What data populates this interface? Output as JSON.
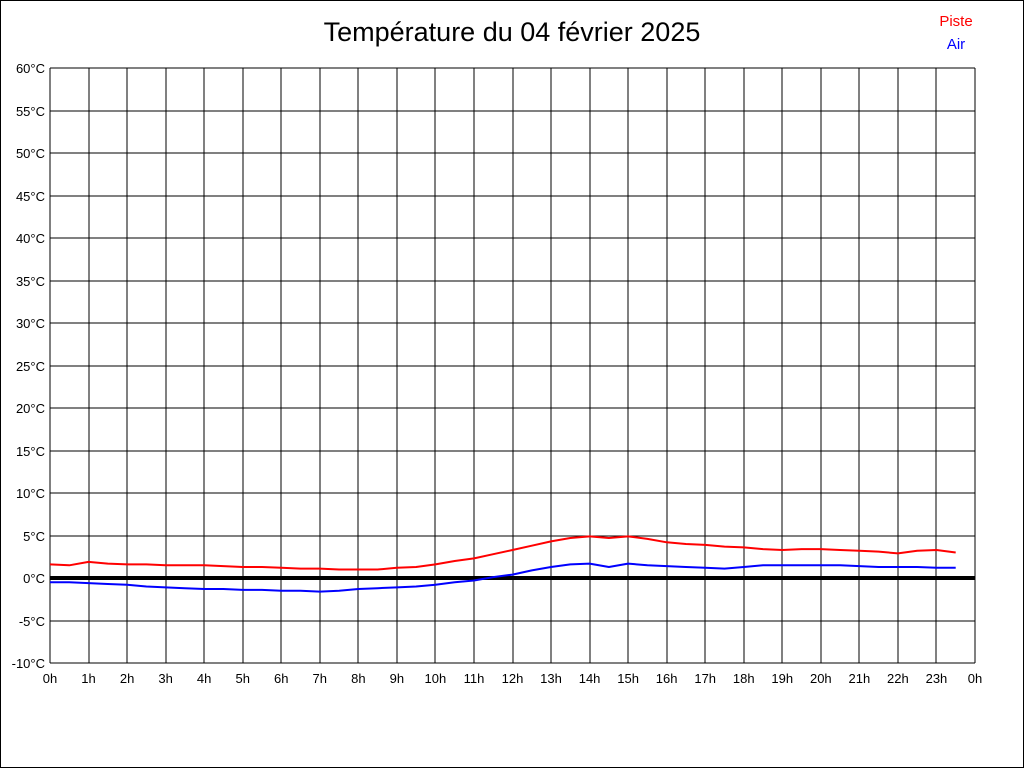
{
  "chart_data": {
    "type": "line",
    "title": "Température du 04 février 2025",
    "xlabel": "",
    "ylabel": "",
    "xlim": [
      0,
      24
    ],
    "ylim": [
      -10,
      60
    ],
    "grid": true,
    "grid_color": "#000000",
    "zero_line": {
      "value": 0,
      "color": "#000000",
      "width": 4
    },
    "legend_position": "top-right",
    "x_tick_labels": [
      "0h",
      "1h",
      "2h",
      "3h",
      "4h",
      "5h",
      "6h",
      "7h",
      "8h",
      "9h",
      "10h",
      "11h",
      "12h",
      "13h",
      "14h",
      "15h",
      "16h",
      "17h",
      "18h",
      "19h",
      "20h",
      "21h",
      "22h",
      "23h",
      "0h"
    ],
    "y_tick_labels": [
      "60°C",
      "55°C",
      "50°C",
      "45°C",
      "40°C",
      "35°C",
      "30°C",
      "25°C",
      "20°C",
      "15°C",
      "10°C",
      "5°C",
      "0°C",
      "-5°C",
      "-10°C"
    ],
    "x_unit": "hours",
    "y_unit": "°C",
    "x": [
      0,
      0.5,
      1,
      1.5,
      2,
      2.5,
      3,
      3.5,
      4,
      4.5,
      5,
      5.5,
      6,
      6.5,
      7,
      7.5,
      8,
      8.5,
      9,
      9.5,
      10,
      10.5,
      11,
      11.5,
      12,
      12.5,
      13,
      13.5,
      14,
      14.5,
      15,
      15.5,
      16,
      16.5,
      17,
      17.5,
      18,
      18.5,
      19,
      19.5,
      20,
      20.5,
      21,
      21.5,
      22,
      22.5,
      23,
      23.5
    ],
    "series": [
      {
        "name": "Piste",
        "color": "#ff0000",
        "values": [
          1.6,
          1.5,
          1.9,
          1.7,
          1.6,
          1.6,
          1.5,
          1.5,
          1.5,
          1.4,
          1.3,
          1.3,
          1.2,
          1.1,
          1.1,
          1.0,
          1.0,
          1.0,
          1.2,
          1.3,
          1.6,
          2.0,
          2.3,
          2.8,
          3.3,
          3.8,
          4.3,
          4.7,
          4.9,
          4.7,
          4.9,
          4.6,
          4.2,
          4.0,
          3.9,
          3.7,
          3.6,
          3.4,
          3.3,
          3.4,
          3.4,
          3.3,
          3.2,
          3.1,
          2.9,
          3.2,
          3.3,
          3.0
        ]
      },
      {
        "name": "Air",
        "color": "#0000ff",
        "values": [
          -0.5,
          -0.5,
          -0.6,
          -0.7,
          -0.8,
          -1.0,
          -1.1,
          -1.2,
          -1.3,
          -1.3,
          -1.4,
          -1.4,
          -1.5,
          -1.5,
          -1.6,
          -1.5,
          -1.3,
          -1.2,
          -1.1,
          -1.0,
          -0.8,
          -0.5,
          -0.3,
          0.1,
          0.4,
          0.9,
          1.3,
          1.6,
          1.7,
          1.3,
          1.7,
          1.5,
          1.4,
          1.3,
          1.2,
          1.1,
          1.3,
          1.5,
          1.5,
          1.5,
          1.5,
          1.5,
          1.4,
          1.3,
          1.3,
          1.3,
          1.2,
          1.2
        ]
      }
    ]
  }
}
